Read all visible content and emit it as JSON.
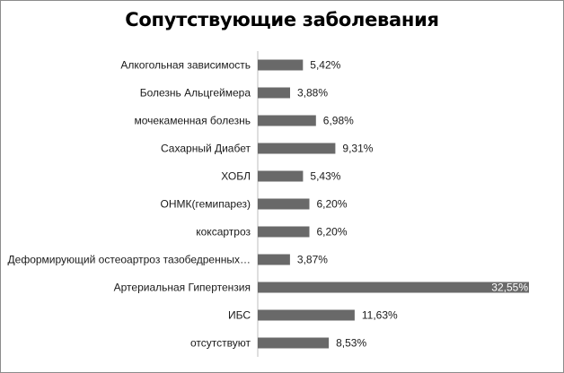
{
  "chart_data": {
    "type": "bar",
    "orientation": "horizontal",
    "title": "Сопутствующие заболевания",
    "xlabel": "",
    "ylabel": "",
    "xlim": [
      0,
      32.55
    ],
    "grid": false,
    "legend": "none",
    "bar_color": "#696969",
    "categories": [
      "Алкогольная зависимость",
      "Болезнь Альцгеймера",
      "мочекаменная болезнь",
      "Сахарный Диабет",
      "ХОБЛ",
      "ОНМК(гемипарез)",
      "коксартроз",
      "Деформирующий остеоартроз тазобедренных…",
      "Артериальная Гипертензия",
      "ИБС",
      "отсутствуют"
    ],
    "values": [
      5.42,
      3.88,
      6.98,
      9.31,
      5.43,
      6.2,
      6.2,
      3.87,
      32.55,
      11.63,
      8.53
    ],
    "value_labels": [
      "5,42%",
      "3,88%",
      "6,98%",
      "9,31%",
      "5,43%",
      "6,20%",
      "6,20%",
      "3,87%",
      "32,55%",
      "11,63%",
      "8,53%"
    ]
  }
}
